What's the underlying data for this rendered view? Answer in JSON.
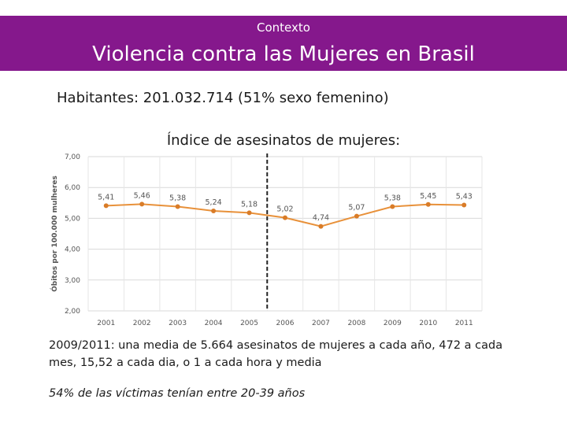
{
  "header": {
    "subtitle": "Contexto",
    "title": "Violencia contra las Mujeres en Brasil"
  },
  "habitantes": "Habitantes: 201.032.714  (51% sexo femenino)",
  "chart_title": "Índice de asesinatos de mujeres:",
  "paragraph": "2009/2011: una media de 5.664 asesinatos de mujeres a cada año, 472 a cada mes, 15,52 a cada dia, o 1 a cada hora y media",
  "note": "54% de las víctimas tenían entre  20-39 años",
  "colors": {
    "banner": "#85188c",
    "line": "#e8913a",
    "marker": "#d97c28"
  },
  "chart_data": {
    "type": "line",
    "title": "Índice de asesinatos de mujeres:",
    "xlabel": "",
    "ylabel": "Óbitos por 100.000 mulheres",
    "categories": [
      "2001",
      "2002",
      "2003",
      "2004",
      "2005",
      "2006",
      "2007",
      "2008",
      "2009",
      "2010",
      "2011"
    ],
    "values": [
      5.41,
      5.46,
      5.38,
      5.24,
      5.18,
      5.02,
      4.74,
      5.07,
      5.38,
      5.45,
      5.43
    ],
    "data_labels": [
      "5,41",
      "5,46",
      "5,38",
      "5,24",
      "5,18",
      "5,02",
      "4,74",
      "5,07",
      "5,38",
      "5,45",
      "5,43"
    ],
    "y_ticks": [
      2,
      3,
      4,
      5,
      6,
      7
    ],
    "y_tick_labels": [
      "2,00",
      "3,00",
      "4,00",
      "5,00",
      "6,00",
      "7,00"
    ],
    "ylim": [
      2,
      7
    ],
    "grid": true,
    "vertical_marker_category": "2006"
  }
}
